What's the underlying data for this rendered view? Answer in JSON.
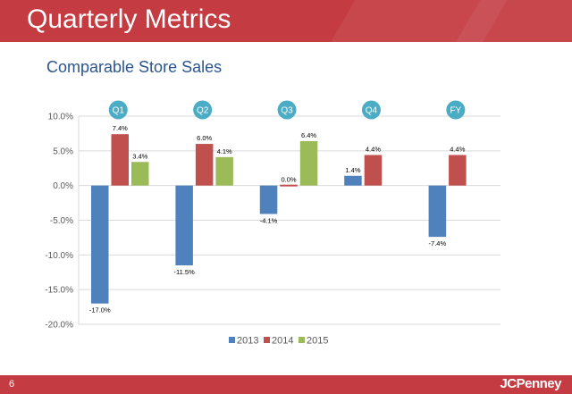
{
  "slide": {
    "title": "Quarterly Metrics",
    "subtitle": "Comparable Store Sales",
    "page_number": "6",
    "logo": "JCPenney"
  },
  "colors": {
    "header_bg": "#c43c42",
    "subtitle": "#2b5592",
    "circle": "#4bacc6"
  },
  "chart_data": {
    "type": "bar",
    "categories": [
      "Q1",
      "Q2",
      "Q3",
      "Q4",
      "FY"
    ],
    "series": [
      {
        "name": "2013",
        "color": "#4f81bd",
        "values": [
          -17.0,
          -11.5,
          -4.1,
          1.4,
          -7.4
        ],
        "labels": [
          "-17.0%",
          "-11.5%",
          "-4.1%",
          "1.4%",
          "-7.4%"
        ]
      },
      {
        "name": "2014",
        "color": "#c0504d",
        "values": [
          7.4,
          6.0,
          0.0,
          4.4,
          4.4
        ],
        "labels": [
          "7.4%",
          "6.0%",
          "0.0%",
          "4.4%",
          "4.4%"
        ]
      },
      {
        "name": "2015",
        "color": "#9bbb59",
        "values": [
          3.4,
          4.1,
          6.4,
          null,
          null
        ],
        "labels": [
          "3.4%",
          "4.1%",
          "6.4%",
          null,
          null
        ]
      }
    ],
    "ylim": [
      -20,
      10
    ],
    "yticks": [
      10,
      5,
      0,
      -5,
      -10,
      -15,
      -20
    ],
    "ytick_labels": [
      "10.0%",
      "5.0%",
      "0.0%",
      "-5.0%",
      "-10.0%",
      "-15.0%",
      "-20.0%"
    ],
    "grid": true,
    "legend": "bottom"
  }
}
